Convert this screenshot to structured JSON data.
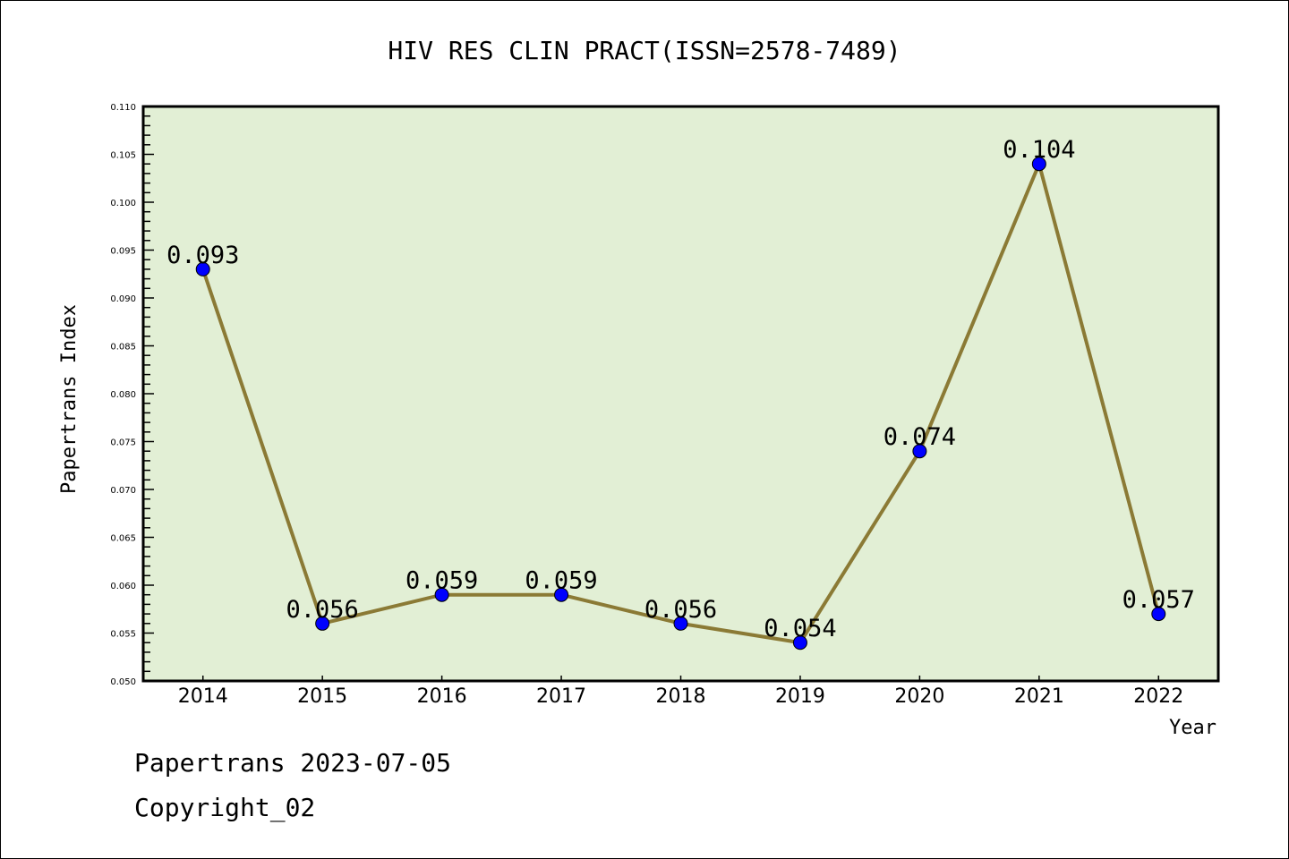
{
  "chart_data": {
    "type": "line",
    "title": "HIV RES CLIN PRACT(ISSN=2578-7489)",
    "xlabel": "Year",
    "ylabel": "Papertrans Index",
    "categories": [
      "2014",
      "2015",
      "2016",
      "2017",
      "2018",
      "2019",
      "2020",
      "2021",
      "2022"
    ],
    "values": [
      0.093,
      0.056,
      0.059,
      0.059,
      0.056,
      0.054,
      0.074,
      0.104,
      0.057
    ],
    "data_labels": [
      "0.093",
      "0.056",
      "0.059",
      "0.059",
      "0.056",
      "0.054",
      "0.074",
      "0.104",
      "0.057"
    ],
    "ylim": [
      0.05,
      0.11
    ],
    "yticks": [
      "0.050",
      "0.055",
      "0.060",
      "0.065",
      "0.070",
      "0.075",
      "0.080",
      "0.085",
      "0.090",
      "0.095",
      "0.100",
      "0.105",
      "0.110"
    ],
    "grid": false,
    "colors": {
      "plot_bg": "#e2efd5",
      "line": "#8b7a35",
      "marker": "#0000ff"
    }
  },
  "footer": {
    "line1": "Papertrans 2023-07-05",
    "line2": "Copyright_02"
  }
}
